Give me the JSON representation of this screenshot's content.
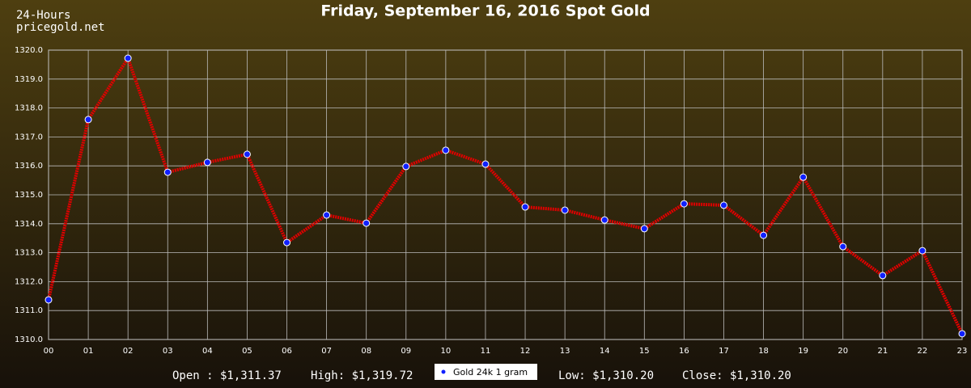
{
  "chart_data": {
    "type": "line",
    "title": "Friday, September 16, 2016 Spot Gold",
    "source_lines": [
      "24-Hours",
      "pricegold.net"
    ],
    "categories": [
      "00",
      "01",
      "02",
      "03",
      "04",
      "05",
      "06",
      "07",
      "08",
      "09",
      "10",
      "11",
      "12",
      "13",
      "14",
      "15",
      "16",
      "17",
      "18",
      "19",
      "20",
      "21",
      "22",
      "23"
    ],
    "series": [
      {
        "name": "Gold 24k 1 gram",
        "color": "#e00000",
        "marker_color": "#1020ff",
        "values": [
          1311.37,
          1317.6,
          1319.72,
          1315.78,
          1316.12,
          1316.4,
          1313.35,
          1314.3,
          1314.02,
          1315.98,
          1316.54,
          1316.06,
          1314.58,
          1314.47,
          1314.13,
          1313.83,
          1314.69,
          1314.64,
          1313.6,
          1315.61,
          1313.21,
          1312.21,
          1313.07,
          1310.2
        ]
      }
    ],
    "ylim": [
      1310,
      1320
    ],
    "yticks": [
      {
        "value": 1310,
        "label": "1310.0"
      },
      {
        "value": 1311,
        "label": "1311.0"
      },
      {
        "value": 1312,
        "label": "1312.0"
      },
      {
        "value": 1313,
        "label": "1313.0"
      },
      {
        "value": 1314,
        "label": "1314.0"
      },
      {
        "value": 1315,
        "label": "1315.0"
      },
      {
        "value": 1316,
        "label": "1316.0"
      },
      {
        "value": 1317,
        "label": "1317.0"
      },
      {
        "value": 1318,
        "label": "1318.0"
      },
      {
        "value": 1319,
        "label": "1319.0"
      },
      {
        "value": 1320,
        "label": "1320.0"
      }
    ],
    "grid": true,
    "summary": [
      "Open : $1,311.37",
      "High: $1,319.72",
      "Low: $1,310.20",
      "Close: $1,310.20"
    ]
  }
}
